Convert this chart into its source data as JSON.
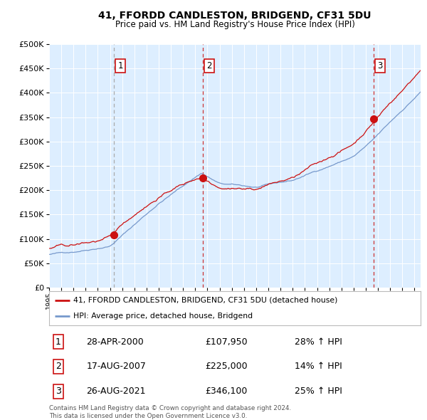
{
  "title": "41, FFORDD CANDLESTON, BRIDGEND, CF31 5DU",
  "subtitle": "Price paid vs. HM Land Registry's House Price Index (HPI)",
  "background_color": "#ddeeff",
  "plot_bg_color": "#ddeeff",
  "hpi_color": "#7799cc",
  "price_color": "#cc1111",
  "marker_color": "#cc1111",
  "sale_times": [
    2000.33,
    2007.63,
    2021.65
  ],
  "sale_prices": [
    107950,
    225000,
    346100
  ],
  "sale_labels": [
    "1",
    "2",
    "3"
  ],
  "sale_hpi_pct": [
    "28% ↑ HPI",
    "14% ↑ HPI",
    "25% ↑ HPI"
  ],
  "sale_date_strs": [
    "28-APR-2000",
    "17-AUG-2007",
    "26-AUG-2021"
  ],
  "sale_price_strs": [
    "£107,950",
    "£225,000",
    "£346,100"
  ],
  "legend_house": "41, FFORDD CANDLESTON, BRIDGEND, CF31 5DU (detached house)",
  "legend_hpi": "HPI: Average price, detached house, Bridgend",
  "footer": "Contains HM Land Registry data © Crown copyright and database right 2024.\nThis data is licensed under the Open Government Licence v3.0.",
  "ylim": [
    0,
    500000
  ],
  "yticks": [
    0,
    50000,
    100000,
    150000,
    200000,
    250000,
    300000,
    350000,
    400000,
    450000,
    500000
  ],
  "vline1_color": "#aaaaaa",
  "vline2_color": "#cc3333",
  "vline3_color": "#cc3333"
}
